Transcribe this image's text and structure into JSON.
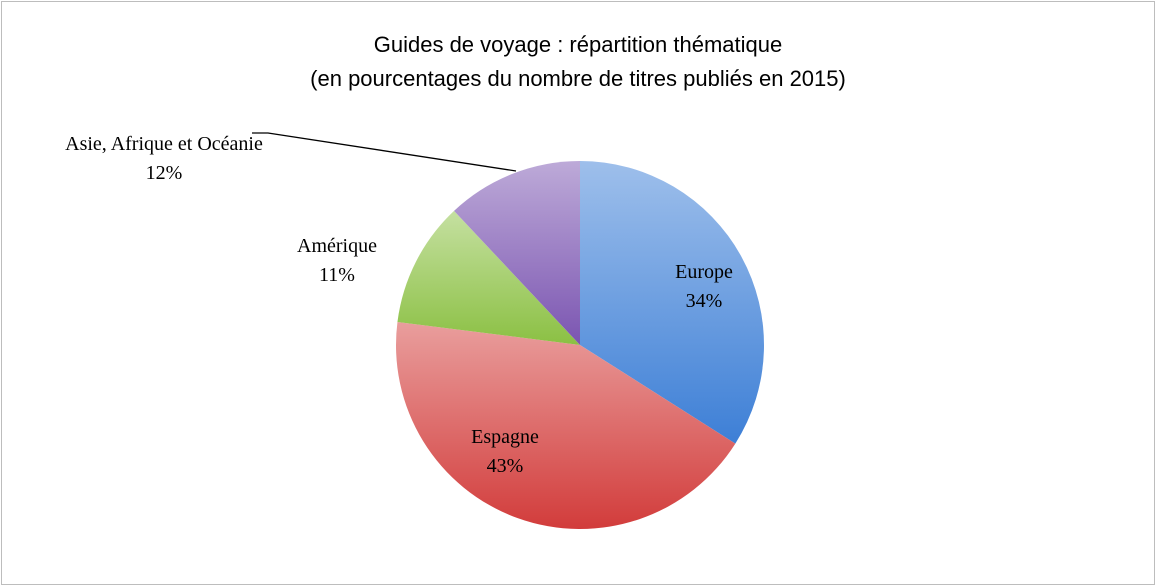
{
  "chart_data": {
    "type": "pie",
    "title": "Guides de voyage : répartition thématique",
    "subtitle": "(en pourcentages du nombre de titres publiés en 2015)",
    "categories": [
      "Europe",
      "Espagne",
      "Amérique",
      "Asie, Afrique et Océanie"
    ],
    "values": [
      34,
      43,
      11,
      12
    ],
    "value_labels": [
      "34%",
      "43%",
      "11%",
      "12%"
    ],
    "colors": [
      "#3d7fd6",
      "#d23c3b",
      "#8bc043",
      "#7b55b1"
    ]
  }
}
